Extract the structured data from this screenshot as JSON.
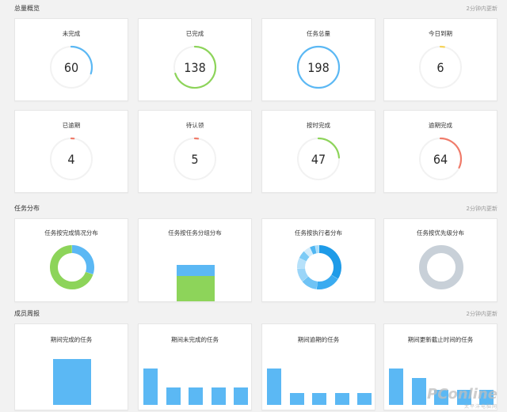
{
  "colors": {
    "blue": "#5bb8f4",
    "green": "#8dd45a",
    "yellow": "#f6d35a",
    "red": "#f07b6a",
    "track": "#f2f2f2",
    "gray": "#c8d0d8"
  },
  "overview": {
    "title": "总量概览",
    "meta": "2分钟内更新",
    "cards": [
      {
        "label": "未完成",
        "value": "60",
        "ratio": 0.3,
        "color": "#5bb8f4"
      },
      {
        "label": "已完成",
        "value": "138",
        "ratio": 0.7,
        "color": "#8dd45a"
      },
      {
        "label": "任务总量",
        "value": "198",
        "ratio": 1.0,
        "color": "#5bb8f4"
      },
      {
        "label": "今日到期",
        "value": "6",
        "ratio": 0.03,
        "color": "#f6d35a"
      },
      {
        "label": "已逾期",
        "value": "4",
        "ratio": 0.02,
        "color": "#f07b6a"
      },
      {
        "label": "待认领",
        "value": "5",
        "ratio": 0.025,
        "color": "#f07b6a"
      },
      {
        "label": "按时完成",
        "value": "47",
        "ratio": 0.24,
        "color": "#8dd45a"
      },
      {
        "label": "逾期完成",
        "value": "64",
        "ratio": 0.32,
        "color": "#f07b6a"
      }
    ]
  },
  "distribution": {
    "title": "任务分布",
    "meta": "2分钟内更新",
    "cards": [
      {
        "label": "任务按完成情况分布",
        "slices": [
          {
            "value": 60,
            "color": "#5bb8f4"
          },
          {
            "value": 138,
            "color": "#8dd45a"
          }
        ]
      },
      {
        "label": "任务按任务分组分布",
        "stack": [
          {
            "value": 0.3,
            "color": "#5bb8f4"
          },
          {
            "value": 0.7,
            "color": "#8dd45a"
          }
        ]
      },
      {
        "label": "任务按执行者分布",
        "slices": [
          {
            "value": 34,
            "color": "#1e9be8"
          },
          {
            "value": 18,
            "color": "#3aabf0"
          },
          {
            "value": 12,
            "color": "#6fc3f5"
          },
          {
            "value": 10,
            "color": "#9ad5f8"
          },
          {
            "value": 8,
            "color": "#b6e1fa"
          },
          {
            "value": 6,
            "color": "#7ccbf6"
          },
          {
            "value": 5,
            "color": "#d2ecfb"
          },
          {
            "value": 4,
            "color": "#4fb6f2"
          },
          {
            "value": 3,
            "color": "#a8dcf9"
          }
        ]
      },
      {
        "label": "任务按优先级分布",
        "slices": [
          {
            "value": 1,
            "color": "#c8d0d8"
          }
        ]
      }
    ]
  },
  "weekly": {
    "title": "成员周报",
    "meta": "2分钟内更新",
    "cards": [
      {
        "label": "期间完成的任务",
        "bars": [
          0,
          1,
          0
        ],
        "mode": "single"
      },
      {
        "label": "期间未完成的任务",
        "bars": [
          1,
          0.48,
          0.48,
          0.48,
          0.48
        ],
        "mode": "multi"
      },
      {
        "label": "期间逾期的任务",
        "bars": [
          1,
          0.32,
          0.32,
          0.32,
          0.32
        ],
        "mode": "multi"
      },
      {
        "label": "期间更新截止时间的任务",
        "bars": [
          1,
          0.75,
          0.42,
          0.42,
          0.42
        ],
        "mode": "multi"
      }
    ],
    "bar_color": "#5bb8f4"
  },
  "watermark": {
    "main": "PConline",
    "sub": "太平洋电脑网"
  }
}
